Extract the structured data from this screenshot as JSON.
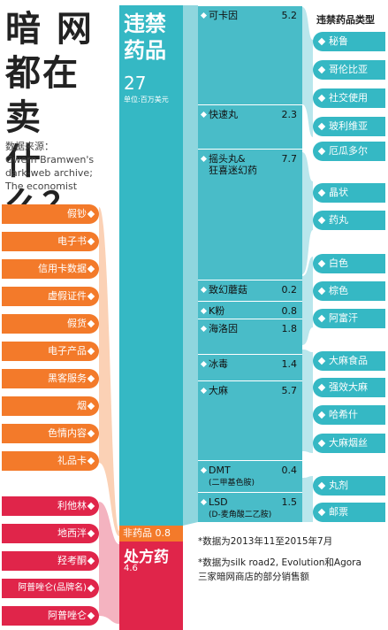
{
  "title": "暗 网 都在卖 什么？",
  "title_lines": [
    "暗  网",
    "都在卖",
    "什么？"
  ],
  "source": [
    "数据来源：",
    "Gwern Bramwen's",
    "dark-web archive;",
    "The economist"
  ],
  "illicit": {
    "label_1": "违禁",
    "label_2": "药品",
    "value": "27",
    "unit": "单位:百万美元"
  },
  "nondrug": {
    "label": "非药品",
    "value": "0.8"
  },
  "prescription": {
    "label": "处方药",
    "value": "4.6"
  },
  "nondrug_items": [
    "假钞",
    "电子书",
    "信用卡数据",
    "虚假证件",
    "假货",
    "电子产品",
    "黑客服务",
    "烟",
    "色情内容",
    "礼品卡"
  ],
  "rx_items": [
    "利他林",
    "地西泮",
    "羟考酮",
    "阿普唑仑(品牌名)",
    "阿普唑仑"
  ],
  "drugs": [
    {
      "name": "可卡因",
      "value": "5.2"
    },
    {
      "name": "快速丸",
      "value": "2.3"
    },
    {
      "name": "摇头丸&",
      "name2": "狂喜迷幻药",
      "value": "7.7"
    },
    {
      "name": "致幻蘑菇",
      "value": "0.2"
    },
    {
      "name": "K粉",
      "value": "0.8"
    },
    {
      "name": "海洛因",
      "value": "1.8"
    },
    {
      "name": "冰毒",
      "value": "1.4"
    },
    {
      "name": "大麻",
      "value": "5.7"
    },
    {
      "name": "DMT",
      "name2": "(二甲基色胺)",
      "value": "0.4"
    },
    {
      "name": "LSD",
      "name2": "(D-麦角酸二乙胺)",
      "value": "1.5"
    }
  ],
  "category_heading": "违禁药品类型",
  "categories": [
    "秘鲁",
    "哥伦比亚",
    "社交使用",
    "玻利维亚",
    "厄瓜多尔",
    "晶状",
    "药丸",
    "白色",
    "棕色",
    "阿富汗",
    "大麻食品",
    "强效大麻",
    "哈希什",
    "大麻烟丝",
    "丸剂",
    "邮票"
  ],
  "notes": [
    "*数据为2013年11至2015年7月",
    "*数据为silk road2, Evolution和Agora",
    "三家暗网商店的部分销售额"
  ],
  "colors": {
    "teal": "#35b8c4",
    "light_teal": "#b9e6ec",
    "orange": "#f37a2a",
    "red": "#e0254a"
  }
}
